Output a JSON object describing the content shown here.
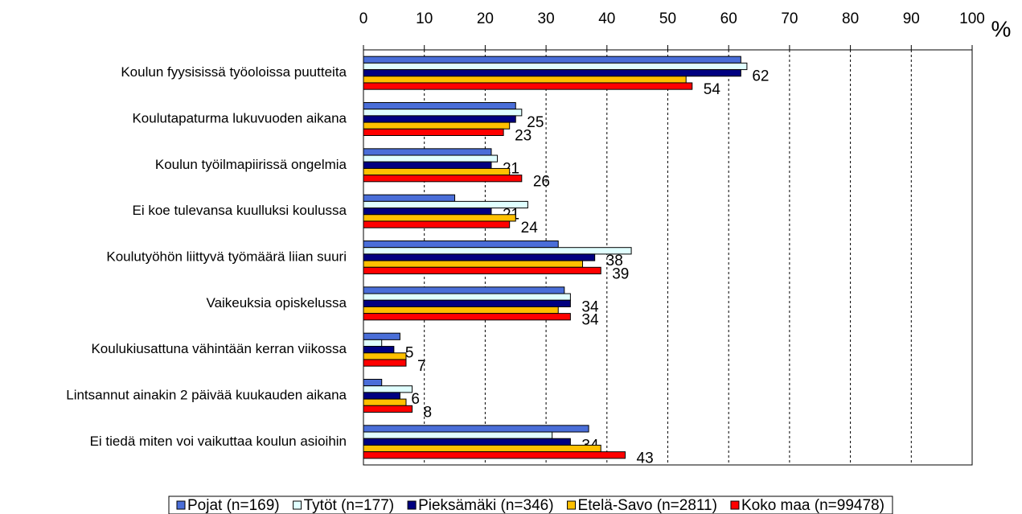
{
  "chart_data": {
    "type": "bar",
    "orientation": "horizontal",
    "x_label": "%",
    "categories": [
      "Koulun fyysisissä työoloissa puutteita",
      "Koulutapaturma lukuvuoden aikana",
      "Koulun työilmapiirissä ongelmia",
      "Ei koe tulevansa kuulluksi koulussa",
      "Koulutyöhön liittyvä työmäärä liian suuri",
      "Vaikeuksia opiskelussa",
      "Koulukiusattuna vähintään kerran viikossa",
      "Lintsannut ainakin 2 päivää kuukauden aikana",
      "Ei tiedä miten voi vaikuttaa koulun asioihin"
    ],
    "series": [
      {
        "name": "Pojat (n=169)",
        "color": "#4a6ed8",
        "data_labels": false,
        "values": [
          62,
          25,
          21,
          15,
          32,
          33,
          6,
          3,
          37
        ]
      },
      {
        "name": "Tytöt (n=177)",
        "color": "#e0ffff",
        "data_labels": false,
        "values": [
          63,
          26,
          22,
          27,
          44,
          34,
          3,
          8,
          31
        ]
      },
      {
        "name": "Pieksämäki (n=346)",
        "color": "#000080",
        "data_labels": true,
        "values": [
          62,
          25,
          21,
          21,
          38,
          34,
          5,
          6,
          34
        ]
      },
      {
        "name": "Etelä-Savo (n=2811)",
        "color": "#ffc000",
        "data_labels": false,
        "values": [
          53,
          24,
          24,
          25,
          36,
          32,
          7,
          7,
          39
        ]
      },
      {
        "name": "Koko maa (n=99478)",
        "color": "#ff0000",
        "data_labels": true,
        "values": [
          54,
          23,
          26,
          24,
          39,
          34,
          7,
          8,
          43
        ]
      }
    ],
    "xlim": [
      0,
      100
    ],
    "xticks": [
      0,
      10,
      20,
      30,
      40,
      50,
      60,
      70,
      80,
      90,
      100
    ],
    "grid": true,
    "legend": "bottom"
  }
}
